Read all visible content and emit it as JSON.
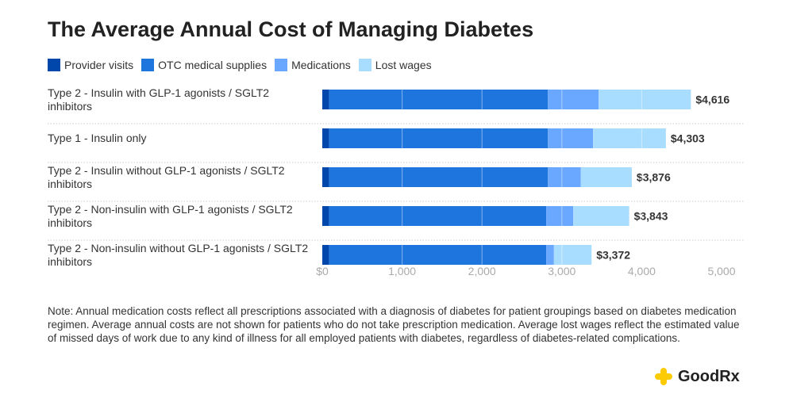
{
  "chart_data": {
    "type": "bar",
    "orientation": "horizontal",
    "stacked": true,
    "title": "The Average Annual Cost of Managing Diabetes",
    "categories": [
      "Type 2 - Insulin with GLP-1 agonists / SGLT2 inhibitors",
      "Type 1 - Insulin only",
      "Type 2 - Insulin without GLP-1 agonists / SGLT2 inhibitors",
      "Type 2 - Non-insulin with GLP-1 agonists / SGLT2 inhibitors",
      "Type 2 - Non-insulin without GLP-1 agonists / SGLT2 inhibitors"
    ],
    "series": [
      {
        "name": "Provider visits",
        "color": "#0047AB",
        "values": [
          86,
          86,
          86,
          86,
          86
        ]
      },
      {
        "name": "OTC medical supplies",
        "color": "#1F75DE",
        "values": [
          2739,
          2739,
          2739,
          2719,
          2719
        ]
      },
      {
        "name": "Medications",
        "color": "#6AA8FF",
        "values": [
          635,
          566,
          413,
          337,
          96
        ]
      },
      {
        "name": "Lost wages",
        "color": "#A9DDFF",
        "values": [
          1156,
          912,
          638,
          701,
          471
        ]
      }
    ],
    "totals": [
      "$4,616",
      "$4,303",
      "$3,876",
      "$3,843",
      "$3,372"
    ],
    "xlim": [
      0,
      5000
    ],
    "xticks": [
      0,
      1000,
      2000,
      3000,
      4000,
      5000
    ],
    "xtick_labels": [
      "$0",
      "1,000",
      "2,000",
      "3,000",
      "4,000",
      "5,000"
    ],
    "legend": "top-left",
    "grid": true
  },
  "note": "Note: Annual medication costs reflect all prescriptions associated with a diagnosis of diabetes for patient groupings based on diabetes medication regimen. Average annual costs are not shown for patients who do not take prescription medication. Average lost wages reflect the estimated value of missed days of work due to any kind of illness for all employed patients with diabetes, regardless of diabetes-related complications.",
  "logo": "GoodRx",
  "colors": {
    "logo_icon": "#FDCB04"
  }
}
